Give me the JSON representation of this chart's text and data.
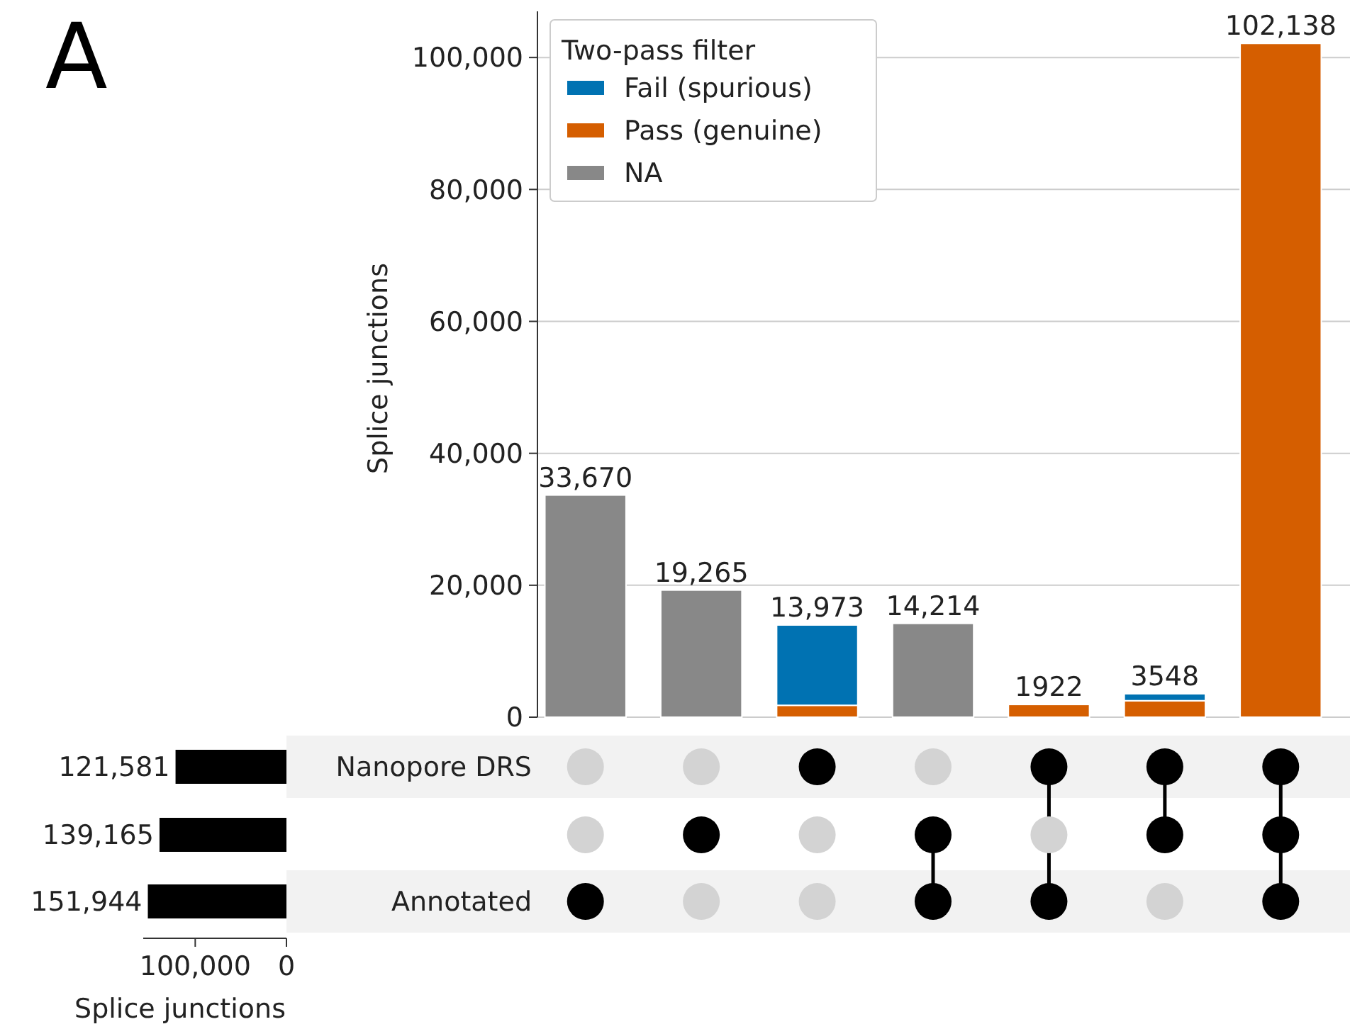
{
  "chart_data": [
    {
      "type": "bar",
      "ylabel": "Splice junctions",
      "stacked": true,
      "categories": [
        null,
        null,
        null,
        null,
        null,
        null,
        null
      ],
      "series": [
        {
          "name": "NA",
          "color": "#888888",
          "values": [
            33670,
            19265,
            null,
            14214,
            null,
            null,
            null
          ]
        },
        {
          "name": "Pass (genuine)",
          "color": "#d55e00",
          "values": [
            null,
            null,
            1800,
            null,
            1922,
            2500,
            102138
          ]
        },
        {
          "name": "Fail (spurious)",
          "color": "#0072b2",
          "values": [
            null,
            null,
            12173,
            null,
            null,
            1048,
            null
          ]
        }
      ],
      "totals": [
        "33,670",
        "19,265",
        "13,973",
        "14,214",
        "1922",
        "3548",
        "102,138"
      ],
      "ylim": [
        0,
        107000
      ],
      "yticks": [
        {
          "value": 0,
          "label": "0"
        },
        {
          "value": 20000,
          "label": "20,000"
        },
        {
          "value": 40000,
          "label": "40,000"
        },
        {
          "value": 60000,
          "label": "60,000"
        },
        {
          "value": 80000,
          "label": "80,000"
        },
        {
          "value": 100000,
          "label": "100,000"
        }
      ],
      "grid": "y",
      "legend": "top left",
      "legend_title": "Two-pass filter",
      "annotations": [
        "A"
      ]
    },
    {
      "type": "bar",
      "orientation": "horizontal",
      "xlabel": "Splice junctions",
      "categories": [
        "Nanopore DRS",
        null,
        "Annotated"
      ],
      "values": [
        121581,
        139165,
        151944
      ],
      "color": "#000000",
      "value_labels": [
        "121,581",
        "139,165",
        "151,944"
      ],
      "xlim": [
        157000,
        0
      ],
      "xticks": [
        {
          "value": 100000,
          "label": "100,000"
        },
        0
      ],
      "grid": false
    }
  ]
}
